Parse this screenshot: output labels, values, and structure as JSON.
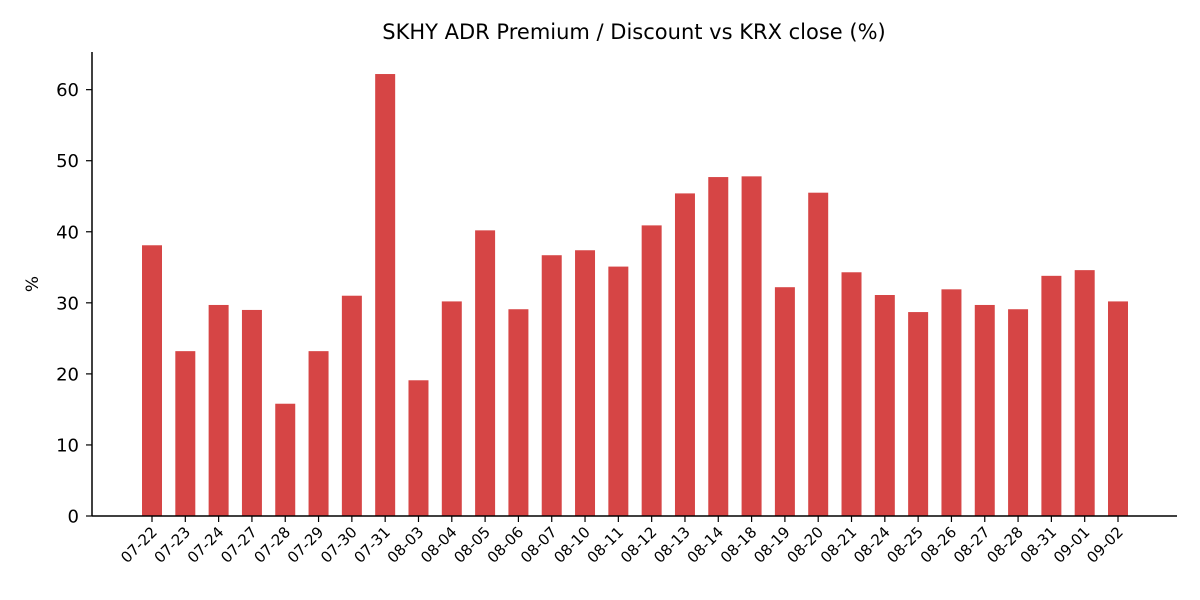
{
  "chart_data": {
    "type": "bar",
    "title": "SKHY ADR Premium / Discount vs KRX close (%)",
    "xlabel": "",
    "ylabel": "%",
    "ylim": [
      0,
      65.3
    ],
    "yticks": [
      0,
      10,
      20,
      30,
      40,
      50,
      60
    ],
    "grid": false,
    "bar_color": "#d64545",
    "categories": [
      "07-22",
      "07-23",
      "07-24",
      "07-27",
      "07-28",
      "07-29",
      "07-30",
      "07-31",
      "08-03",
      "08-04",
      "08-05",
      "08-06",
      "08-07",
      "08-10",
      "08-11",
      "08-12",
      "08-13",
      "08-14",
      "08-18",
      "08-19",
      "08-20",
      "08-21",
      "08-24",
      "08-25",
      "08-26",
      "08-27",
      "08-28",
      "08-31",
      "09-01",
      "09-02"
    ],
    "values": [
      38.1,
      23.2,
      29.7,
      29.0,
      15.8,
      23.2,
      31.0,
      62.2,
      19.1,
      30.2,
      40.2,
      29.1,
      36.7,
      37.4,
      35.1,
      40.9,
      45.4,
      47.7,
      47.8,
      32.2,
      45.5,
      34.3,
      31.1,
      28.7,
      31.9,
      29.7,
      29.1,
      33.8,
      34.6,
      30.2
    ]
  }
}
